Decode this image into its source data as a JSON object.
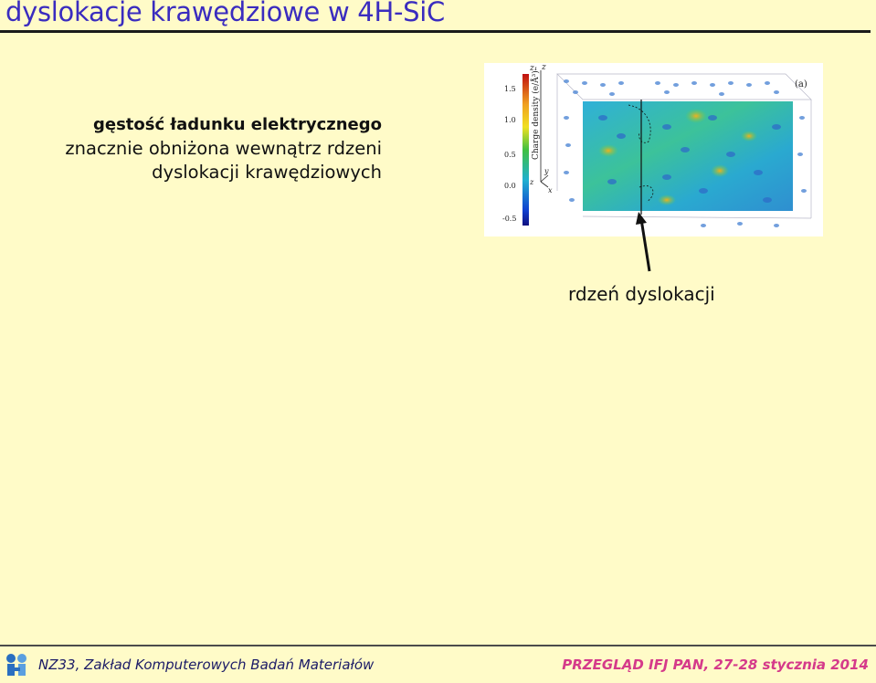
{
  "slide": {
    "title": "dyslokacje krawędziowe w 4H-SiC"
  },
  "text": {
    "line1": "gęstość ładunku elektrycznego",
    "line2": "znacznie obniżona wewnątrz rdzeni",
    "line3": "dyslokacji krawędziowych"
  },
  "figure": {
    "panel_label": "(a)",
    "colorbar_title": "Charge density (e/Å³)",
    "colorbar_ticks": [
      "1.5",
      "1.0",
      "0.5",
      "0.0",
      "-0.5"
    ],
    "axis_labels": {
      "z1": "z₁",
      "z": "z",
      "y": "y",
      "x": "x",
      "z2": "z"
    }
  },
  "callout": {
    "label": "rdzeń dyslokacji"
  },
  "footer": {
    "left": "NZ33, Zakład Komputerowych Badań Materiałów",
    "right": "PRZEGLĄD IFJ PAN,  27-28 stycznia 2014"
  },
  "colors": {
    "title": "#3a2cbf",
    "footer_left": "#1a1a66",
    "footer_right": "#d53a8a",
    "background": "#fffbc8"
  }
}
